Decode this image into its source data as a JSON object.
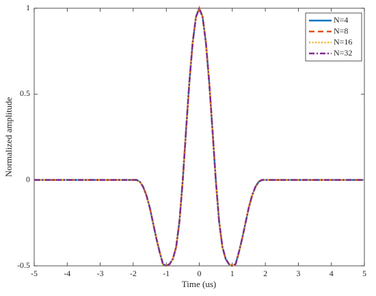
{
  "chart_data": {
    "type": "line",
    "xlabel": "Time (us)",
    "ylabel": "Normalized amplitude",
    "x": [
      -5,
      -4,
      -3,
      -2,
      -1.9,
      -1.8,
      -1.7,
      -1.6,
      -1.5,
      -1.4,
      -1.3,
      -1.2,
      -1.1,
      -1,
      -0.9,
      -0.8,
      -0.7,
      -0.6,
      -0.5,
      -0.4,
      -0.3,
      -0.2,
      -0.1,
      0,
      0.1,
      0.2,
      0.3,
      0.4,
      0.5,
      0.6,
      0.7,
      0.8,
      0.9,
      1,
      1.1,
      1.2,
      1.3,
      1.4,
      1.5,
      1.6,
      1.7,
      1.8,
      1.9,
      2,
      3,
      4,
      5
    ],
    "series": [
      {
        "name": "N=4",
        "color": "#0072bd",
        "dash": "solid",
        "values": [
          0,
          0,
          0,
          0,
          0,
          -0.01,
          -0.04,
          -0.09,
          -0.16,
          -0.25,
          -0.34,
          -0.42,
          -0.49,
          -0.5,
          -0.49,
          -0.46,
          -0.39,
          -0.24,
          0,
          0.29,
          0.57,
          0.8,
          0.95,
          1,
          0.95,
          0.8,
          0.57,
          0.29,
          0,
          -0.24,
          -0.39,
          -0.46,
          -0.49,
          -0.5,
          -0.49,
          -0.42,
          -0.34,
          -0.25,
          -0.16,
          -0.09,
          -0.04,
          -0.01,
          0,
          0,
          0,
          0,
          0
        ]
      },
      {
        "name": "N=8",
        "color": "#d95319",
        "dash": "dashed",
        "values": [
          0,
          0,
          0,
          0,
          0,
          -0.01,
          -0.04,
          -0.09,
          -0.16,
          -0.25,
          -0.34,
          -0.42,
          -0.49,
          -0.5,
          -0.49,
          -0.46,
          -0.39,
          -0.24,
          0,
          0.29,
          0.57,
          0.8,
          0.95,
          1,
          0.95,
          0.8,
          0.57,
          0.29,
          0,
          -0.24,
          -0.39,
          -0.46,
          -0.49,
          -0.5,
          -0.49,
          -0.42,
          -0.34,
          -0.25,
          -0.16,
          -0.09,
          -0.04,
          -0.01,
          0,
          0,
          0,
          0,
          0
        ]
      },
      {
        "name": "N=16",
        "color": "#edb120",
        "dash": "dotted",
        "values": [
          0,
          0,
          0,
          0,
          0,
          -0.01,
          -0.04,
          -0.09,
          -0.16,
          -0.25,
          -0.34,
          -0.42,
          -0.49,
          -0.5,
          -0.49,
          -0.46,
          -0.39,
          -0.24,
          0,
          0.29,
          0.57,
          0.8,
          0.95,
          1,
          0.95,
          0.8,
          0.57,
          0.29,
          0,
          -0.24,
          -0.39,
          -0.46,
          -0.49,
          -0.5,
          -0.49,
          -0.42,
          -0.34,
          -0.25,
          -0.16,
          -0.09,
          -0.04,
          -0.01,
          0,
          0,
          0,
          0,
          0
        ]
      },
      {
        "name": "N=32",
        "color": "#7e2f8e",
        "dash": "dashdot",
        "values": [
          0,
          0,
          0,
          0,
          0,
          -0.01,
          -0.04,
          -0.09,
          -0.16,
          -0.25,
          -0.34,
          -0.42,
          -0.49,
          -0.5,
          -0.49,
          -0.46,
          -0.39,
          -0.24,
          0,
          0.29,
          0.57,
          0.8,
          0.95,
          1,
          0.95,
          0.8,
          0.57,
          0.29,
          0,
          -0.24,
          -0.39,
          -0.46,
          -0.49,
          -0.5,
          -0.49,
          -0.42,
          -0.34,
          -0.25,
          -0.16,
          -0.09,
          -0.04,
          -0.01,
          0,
          0,
          0,
          0,
          0
        ]
      }
    ],
    "xlim": [
      -5,
      5
    ],
    "xticks": [
      -5,
      -4,
      -3,
      -2,
      -1,
      0,
      1,
      2,
      3,
      4,
      5
    ],
    "ylim": [
      -0.5,
      1
    ],
    "yticks": [
      -0.5,
      0,
      0.5,
      1
    ],
    "grid": false,
    "legend": "top-right"
  }
}
